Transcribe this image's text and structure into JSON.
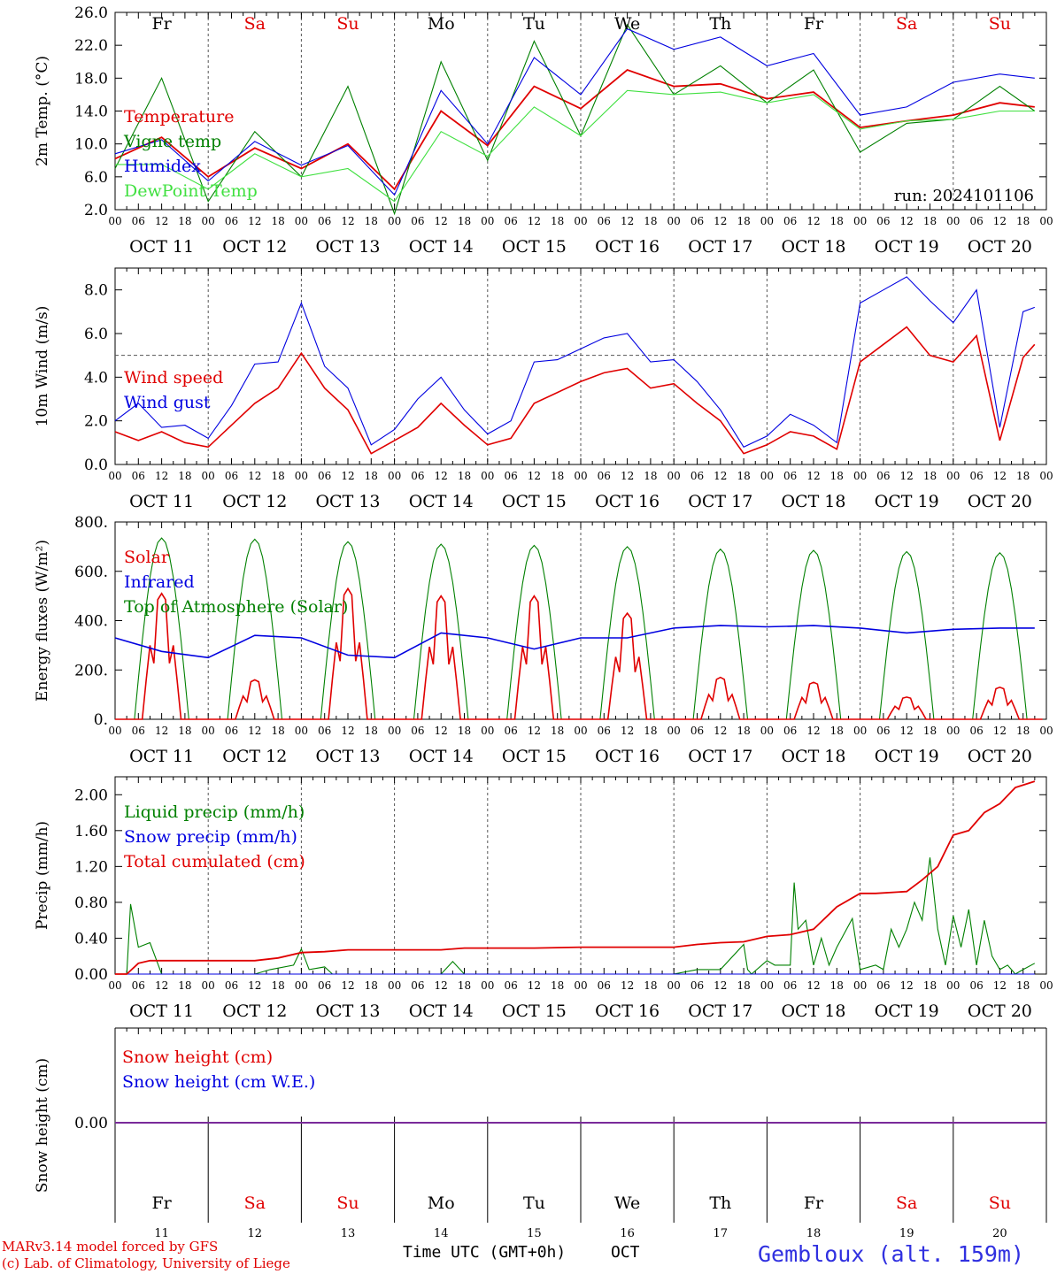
{
  "chart_data": [
    {
      "type": "line",
      "ylabel": "2m Temp. (°C)",
      "ylim": [
        2,
        26
      ],
      "yticks": [
        "2.0",
        "6.0",
        "10.0",
        "14.0",
        "18.0",
        "22.0",
        "26.0"
      ],
      "run_label": "run: 2024101106",
      "legend": [
        "Temperature",
        "Vigne temp",
        "Humidex",
        "DewPoint Temp"
      ],
      "series": [
        {
          "name": "Temperature",
          "color": "#e00000",
          "x": [
            0,
            12,
            24,
            36,
            48,
            60,
            72,
            84,
            96,
            108,
            120,
            132,
            144,
            156,
            168,
            180,
            192,
            204,
            216,
            228,
            237
          ],
          "y": [
            8.2,
            10.8,
            6.0,
            9.5,
            7.0,
            10.0,
            4.5,
            14.0,
            9.8,
            17.0,
            14.3,
            19.0,
            17.0,
            17.3,
            15.5,
            16.3,
            12.0,
            12.8,
            13.5,
            15.0,
            14.5
          ]
        },
        {
          "name": "Vigne temp",
          "color": "#008000",
          "x": [
            0,
            12,
            24,
            36,
            48,
            60,
            72,
            84,
            96,
            108,
            120,
            132,
            144,
            156,
            168,
            180,
            192,
            204,
            216,
            228,
            237
          ],
          "y": [
            7.0,
            18.0,
            3.0,
            11.5,
            6.0,
            17.0,
            1.5,
            20.0,
            8.0,
            22.5,
            11.0,
            24.5,
            16.0,
            19.5,
            15.0,
            19.0,
            9.0,
            12.5,
            13.0,
            17.0,
            14.0
          ]
        },
        {
          "name": "Humidex",
          "color": "#0000e0",
          "x": [
            0,
            12,
            24,
            36,
            48,
            60,
            72,
            84,
            96,
            108,
            120,
            132,
            144,
            156,
            168,
            180,
            192,
            204,
            216,
            228,
            237
          ],
          "y": [
            8.8,
            10.5,
            5.5,
            10.3,
            7.4,
            9.8,
            3.8,
            16.5,
            10.0,
            20.5,
            16.0,
            24.0,
            21.5,
            23.0,
            19.5,
            21.0,
            13.5,
            14.5,
            17.5,
            18.5,
            18.0
          ]
        },
        {
          "name": "DewPoint Temp",
          "color": "#40e040",
          "x": [
            0,
            12,
            24,
            36,
            48,
            60,
            72,
            84,
            96,
            108,
            120,
            132,
            144,
            156,
            168,
            180,
            192,
            204,
            216,
            228,
            237
          ],
          "y": [
            7.5,
            7.5,
            4.5,
            8.8,
            6.0,
            7.0,
            3.0,
            11.5,
            8.5,
            14.5,
            11.0,
            16.5,
            16.0,
            16.3,
            15.0,
            16.0,
            11.8,
            12.8,
            13.0,
            14.0,
            14.0
          ]
        }
      ]
    },
    {
      "type": "line",
      "ylabel": "10m Wind (m/s)",
      "ylim": [
        0,
        9
      ],
      "yticks": [
        "0.0",
        "2.0",
        "4.0",
        "6.0",
        "8.0"
      ],
      "reference_line": 5,
      "legend": [
        "Wind speed",
        "Wind gust"
      ],
      "series": [
        {
          "name": "Wind speed",
          "color": "#e00000",
          "x": [
            0,
            6,
            12,
            18,
            24,
            30,
            36,
            42,
            48,
            54,
            60,
            66,
            72,
            78,
            84,
            90,
            96,
            102,
            108,
            114,
            120,
            126,
            132,
            138,
            144,
            150,
            156,
            162,
            168,
            174,
            180,
            186,
            192,
            198,
            204,
            210,
            216,
            222,
            228,
            234,
            237
          ],
          "y": [
            1.5,
            1.1,
            1.5,
            1.0,
            0.8,
            1.8,
            2.8,
            3.5,
            5.1,
            3.5,
            2.5,
            0.5,
            1.1,
            1.7,
            2.8,
            1.8,
            0.9,
            1.2,
            2.8,
            3.3,
            3.8,
            4.2,
            4.4,
            3.5,
            3.7,
            2.8,
            2.0,
            0.5,
            0.9,
            1.5,
            1.3,
            0.7,
            4.7,
            5.5,
            6.3,
            5.0,
            4.7,
            5.9,
            1.1,
            4.9,
            5.5
          ]
        },
        {
          "name": "Wind gust",
          "color": "#0000e0",
          "x": [
            0,
            6,
            12,
            18,
            24,
            30,
            36,
            42,
            48,
            54,
            60,
            66,
            72,
            78,
            84,
            90,
            96,
            102,
            108,
            114,
            120,
            126,
            132,
            138,
            144,
            150,
            156,
            162,
            168,
            174,
            180,
            186,
            192,
            198,
            204,
            210,
            216,
            222,
            228,
            234,
            237
          ],
          "y": [
            2.0,
            2.8,
            1.7,
            1.8,
            1.2,
            2.7,
            4.6,
            4.7,
            7.4,
            4.5,
            3.5,
            0.9,
            1.6,
            3.0,
            4.0,
            2.5,
            1.4,
            2.0,
            4.7,
            4.8,
            5.3,
            5.8,
            6.0,
            4.7,
            4.8,
            3.8,
            2.5,
            0.8,
            1.3,
            2.3,
            1.8,
            1.0,
            7.4,
            8.0,
            8.6,
            7.5,
            6.5,
            8.0,
            1.7,
            7.0,
            7.2
          ]
        }
      ]
    },
    {
      "type": "line",
      "ylabel": "Energy fluxes (W/m²)",
      "ylim": [
        0,
        800
      ],
      "yticks": [
        "0.",
        "200.",
        "400.",
        "600.",
        "800."
      ],
      "legend": [
        "Solar",
        "Infrared",
        "Top of Atmosphere (Solar)"
      ],
      "series": [
        {
          "name": "Solar",
          "color": "#e00000",
          "day_peaks": [
            510,
            160,
            530,
            500,
            500,
            430,
            170,
            150,
            90,
            130
          ]
        },
        {
          "name": "Infrared",
          "color": "#0000e0",
          "x": [
            0,
            12,
            24,
            36,
            48,
            60,
            72,
            84,
            96,
            108,
            120,
            132,
            144,
            156,
            168,
            180,
            192,
            204,
            216,
            228,
            237
          ],
          "y": [
            330,
            275,
            250,
            340,
            330,
            260,
            250,
            350,
            330,
            285,
            330,
            330,
            370,
            380,
            375,
            380,
            370,
            350,
            365,
            370,
            370
          ]
        },
        {
          "name": "Top of Atmosphere (Solar)",
          "color": "#008000",
          "day_peaks": [
            735,
            730,
            720,
            710,
            705,
            700,
            690,
            685,
            680,
            675
          ]
        }
      ]
    },
    {
      "type": "line",
      "ylabel": "Precip (mm/h)",
      "ylim": [
        0,
        2.2
      ],
      "yticks": [
        "0.00",
        "0.40",
        "0.80",
        "1.20",
        "1.60",
        "2.00"
      ],
      "legend": [
        "Liquid precip (mm/h)",
        "Snow precip (mm/h)",
        "Total cumulated (cm)"
      ],
      "series": [
        {
          "name": "Liquid precip (mm/h)",
          "color": "#008000",
          "x": [
            0,
            3,
            4,
            6,
            9,
            12,
            36,
            40,
            46,
            48,
            50,
            54,
            56,
            58,
            60,
            84,
            87,
            90,
            144,
            150,
            156,
            162,
            163,
            164,
            168,
            170,
            174,
            175,
            176,
            178,
            180,
            182,
            184,
            186,
            190,
            192,
            196,
            198,
            200,
            202,
            204,
            206,
            208,
            210,
            212,
            214,
            216,
            218,
            220,
            222,
            224,
            226,
            228,
            230,
            232,
            234,
            237
          ],
          "y": [
            0,
            0,
            0.78,
            0.3,
            0.35,
            0,
            0,
            0.05,
            0.1,
            0.28,
            0.05,
            0.08,
            0,
            0,
            0,
            0,
            0.14,
            0,
            0,
            0.05,
            0.05,
            0.33,
            0.05,
            0,
            0.15,
            0.1,
            0.1,
            1.02,
            0.5,
            0.6,
            0.1,
            0.4,
            0.1,
            0.3,
            0.62,
            0.05,
            0.1,
            0.05,
            0.5,
            0.3,
            0.5,
            0.8,
            0.6,
            1.3,
            0.5,
            0.1,
            0.65,
            0.3,
            0.72,
            0.1,
            0.6,
            0.2,
            0.05,
            0.1,
            0.0,
            0.05,
            0.12
          ]
        },
        {
          "name": "Snow precip (mm/h)",
          "color": "#0000e0",
          "x": [
            0,
            237
          ],
          "y": [
            0,
            0
          ]
        },
        {
          "name": "Total cumulated (cm)",
          "color": "#e00000",
          "x": [
            0,
            3,
            6,
            9,
            12,
            24,
            36,
            42,
            48,
            54,
            60,
            72,
            84,
            90,
            96,
            108,
            120,
            132,
            144,
            150,
            156,
            162,
            168,
            174,
            180,
            186,
            192,
            196,
            204,
            208,
            212,
            216,
            220,
            224,
            228,
            232,
            237
          ],
          "y": [
            0,
            0,
            0.12,
            0.15,
            0.15,
            0.15,
            0.15,
            0.18,
            0.24,
            0.25,
            0.27,
            0.27,
            0.27,
            0.29,
            0.29,
            0.29,
            0.3,
            0.3,
            0.3,
            0.33,
            0.35,
            0.36,
            0.42,
            0.44,
            0.5,
            0.75,
            0.9,
            0.9,
            0.92,
            1.05,
            1.2,
            1.55,
            1.6,
            1.8,
            1.9,
            2.08,
            2.15
          ]
        }
      ]
    },
    {
      "type": "line",
      "ylabel": "Snow height (cm)",
      "yticks": [
        "0.00"
      ],
      "legend": [
        "Snow height (cm)",
        "Snow height (cm W.E.)"
      ],
      "series": [
        {
          "name": "Snow height (cm)",
          "color": "#e00000",
          "x": [
            0,
            237
          ],
          "y": [
            0,
            0
          ]
        },
        {
          "name": "Snow height (cm W.E.)",
          "color": "#0000e0",
          "x": [
            0,
            237
          ],
          "y": [
            0,
            0
          ]
        }
      ]
    }
  ],
  "days": {
    "weekday_labels": [
      "Fr",
      "Sa",
      "Su",
      "Mo",
      "Tu",
      "We",
      "Th",
      "Fr",
      "Sa",
      "Su"
    ],
    "weekend_flags": [
      false,
      true,
      true,
      false,
      false,
      false,
      false,
      false,
      true,
      true
    ],
    "date_labels": [
      "OCT 11",
      "OCT 12",
      "OCT 13",
      "OCT 14",
      "OCT 15",
      "OCT 16",
      "OCT 17",
      "OCT 18",
      "OCT 19",
      "OCT 20"
    ],
    "day_numbers": [
      "11",
      "12",
      "13",
      "14",
      "15",
      "16",
      "17",
      "18",
      "19",
      "20"
    ],
    "hour_labels": [
      "00",
      "06",
      "12",
      "18"
    ],
    "hour_end_label": "00"
  },
  "footer": {
    "model": "MARv3.14 model forced by GFS",
    "credit": "(c) Lab. of Climatology, University of Liege",
    "xlabel": "Time UTC (GMT+0h)",
    "month": "OCT",
    "location": "Gembloux (alt. 159m)"
  },
  "colors": {
    "red": "#e00000",
    "green": "#008000",
    "blue": "#0000e0",
    "lightgreen": "#40e040",
    "snowline": "#7a2a9a",
    "weekend": "#e00000"
  }
}
